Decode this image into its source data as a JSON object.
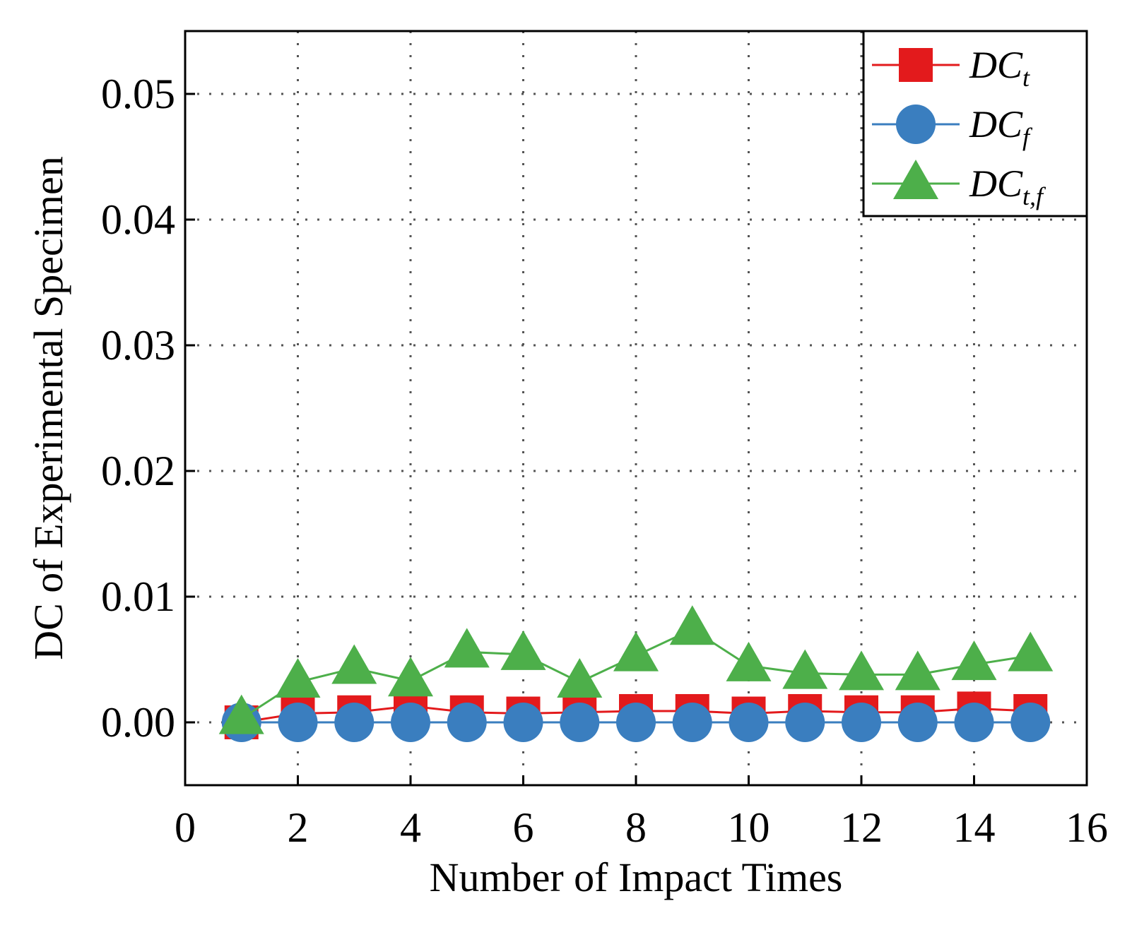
{
  "chart_data": {
    "type": "line",
    "title": "",
    "xlabel": "Number of Impact Times",
    "ylabel": "DC of Experimental Specimen",
    "xlim": [
      0,
      16
    ],
    "ylim": [
      -0.005,
      0.055
    ],
    "xticks": [
      0,
      2,
      4,
      6,
      8,
      10,
      12,
      14,
      16
    ],
    "xtick_labels": [
      "0",
      "2",
      "4",
      "6",
      "8",
      "10",
      "12",
      "14",
      "16"
    ],
    "yticks": [
      0.0,
      0.01,
      0.02,
      0.03,
      0.04,
      0.05
    ],
    "ytick_labels": [
      "0.00",
      "0.01",
      "0.02",
      "0.03",
      "0.04",
      "0.05"
    ],
    "grid": true,
    "legend_position": "top-right",
    "x": [
      1,
      2,
      3,
      4,
      5,
      6,
      7,
      8,
      9,
      10,
      11,
      12,
      13,
      14,
      15
    ],
    "series": [
      {
        "name": "DC_t",
        "label_main": "DC",
        "label_sub": "t",
        "color": "#e31a1c",
        "marker": "square",
        "values": [
          0.0,
          0.0007,
          0.0008,
          0.0013,
          0.0008,
          0.0007,
          0.0008,
          0.0009,
          0.0009,
          0.0007,
          0.0009,
          0.0008,
          0.0008,
          0.0011,
          0.0009
        ]
      },
      {
        "name": "DC_f",
        "label_main": "DC",
        "label_sub": "f",
        "color": "#3a7ebf",
        "marker": "circle",
        "values": [
          0.0,
          0.0,
          0.0,
          0.0,
          0.0,
          0.0,
          0.0,
          0.0,
          0.0,
          0.0,
          0.0,
          0.0,
          0.0,
          0.0,
          0.0
        ]
      },
      {
        "name": "DC_t,f",
        "label_main": "DC",
        "label_sub": "t,f",
        "color": "#4daf4a",
        "marker": "triangle",
        "values": [
          0.0003,
          0.0032,
          0.0043,
          0.0033,
          0.0056,
          0.0054,
          0.0032,
          0.0053,
          0.0074,
          0.0045,
          0.0039,
          0.0038,
          0.0038,
          0.0046,
          0.0053
        ]
      }
    ]
  }
}
